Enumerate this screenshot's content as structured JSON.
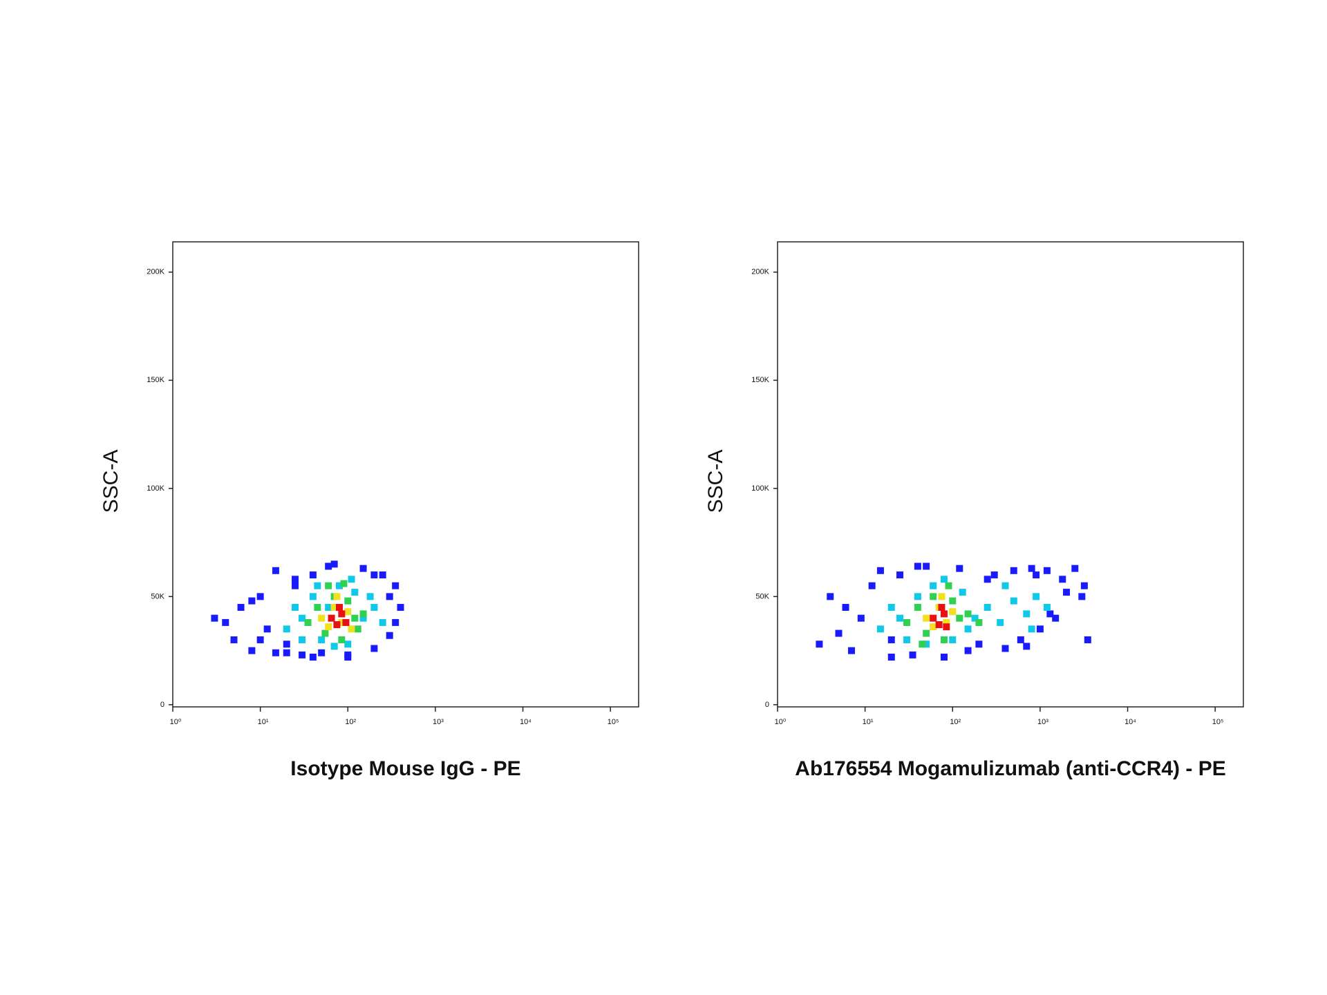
{
  "chart_data": [
    {
      "type": "density-scatter",
      "x_label": "Isotype Mouse IgG - PE",
      "y_label": "SSC-A",
      "xscale": "log",
      "xlim": [
        1,
        210000
      ],
      "xticks": [
        {
          "value": 1,
          "label": "10⁰"
        },
        {
          "value": 10,
          "label": "10¹"
        },
        {
          "value": 100,
          "label": "10²"
        },
        {
          "value": 1000,
          "label": "10³"
        },
        {
          "value": 10000,
          "label": "10⁴"
        },
        {
          "value": 100000,
          "label": "10⁵"
        }
      ],
      "ylim": [
        -1000,
        214000
      ],
      "yticks": [
        0,
        {
          "value": 50000,
          "label": "50K"
        },
        {
          "value": 100000,
          "label": "100K"
        },
        {
          "value": 150000,
          "label": "150K"
        },
        {
          "value": 200000,
          "label": "200K"
        }
      ],
      "series": [
        {
          "color": "#1a1aff",
          "x": [
            3,
            4,
            5,
            6,
            8,
            10,
            12,
            15,
            20,
            25,
            30,
            40,
            50,
            70,
            100,
            150,
            200,
            250,
            300,
            350,
            400,
            15,
            25,
            40,
            60,
            100,
            200,
            300,
            10,
            20,
            8,
            350
          ],
          "values": [
            40000,
            38000,
            30000,
            45000,
            25000,
            50000,
            35000,
            62000,
            28000,
            58000,
            23000,
            60000,
            24000,
            65000,
            22000,
            63000,
            26000,
            60000,
            32000,
            55000,
            45000,
            24000,
            55000,
            22000,
            64000,
            23000,
            60000,
            50000,
            30000,
            24000,
            48000,
            38000
          ]
        },
        {
          "color": "#10c8e8",
          "x": [
            20,
            25,
            30,
            40,
            50,
            60,
            80,
            100,
            120,
            150,
            200,
            250,
            30,
            45,
            70,
            110,
            180
          ],
          "values": [
            35000,
            45000,
            40000,
            50000,
            30000,
            45000,
            55000,
            28000,
            52000,
            40000,
            45000,
            38000,
            30000,
            55000,
            27000,
            58000,
            50000
          ]
        },
        {
          "color": "#30d050",
          "x": [
            35,
            45,
            55,
            70,
            85,
            100,
            120,
            150,
            60,
            90,
            130
          ],
          "values": [
            38000,
            45000,
            33000,
            50000,
            30000,
            48000,
            40000,
            42000,
            55000,
            56000,
            35000
          ]
        },
        {
          "color": "#f0e020",
          "x": [
            50,
            60,
            70,
            85,
            100,
            75,
            110
          ],
          "values": [
            40000,
            36000,
            45000,
            38000,
            43000,
            50000,
            35000
          ]
        },
        {
          "color": "#e81010",
          "x": [
            65,
            75,
            85,
            95,
            80
          ],
          "values": [
            40000,
            37000,
            42000,
            38000,
            45000
          ]
        }
      ]
    },
    {
      "type": "density-scatter",
      "x_label": "Ab176554 Mogamulizumab (anti-CCR4) - PE",
      "y_label": "SSC-A",
      "xscale": "log",
      "xlim": [
        1,
        210000
      ],
      "xticks": [
        {
          "value": 1,
          "label": "10⁰"
        },
        {
          "value": 10,
          "label": "10¹"
        },
        {
          "value": 100,
          "label": "10²"
        },
        {
          "value": 1000,
          "label": "10³"
        },
        {
          "value": 10000,
          "label": "10⁴"
        },
        {
          "value": 100000,
          "label": "10⁵"
        }
      ],
      "ylim": [
        -1000,
        214000
      ],
      "yticks": [
        0,
        {
          "value": 50000,
          "label": "50K"
        },
        {
          "value": 100000,
          "label": "100K"
        },
        {
          "value": 150000,
          "label": "150K"
        },
        {
          "value": 200000,
          "label": "200K"
        }
      ],
      "series": [
        {
          "color": "#1a1aff",
          "x": [
            3,
            4,
            5,
            6,
            7,
            9,
            12,
            15,
            20,
            25,
            35,
            50,
            80,
            120,
            200,
            300,
            400,
            500,
            600,
            800,
            1000,
            1200,
            1500,
            1800,
            2000,
            2500,
            3000,
            3200,
            3500,
            150,
            250,
            700,
            900,
            1300,
            20,
            40
          ],
          "values": [
            28000,
            50000,
            33000,
            45000,
            25000,
            40000,
            55000,
            62000,
            22000,
            60000,
            23000,
            64000,
            22000,
            63000,
            28000,
            60000,
            26000,
            62000,
            30000,
            63000,
            35000,
            62000,
            40000,
            58000,
            52000,
            63000,
            50000,
            55000,
            30000,
            25000,
            58000,
            27000,
            60000,
            42000,
            30000,
            64000
          ]
        },
        {
          "color": "#10c8e8",
          "x": [
            15,
            20,
            30,
            40,
            50,
            60,
            80,
            100,
            130,
            180,
            250,
            350,
            500,
            700,
            900,
            1200,
            25,
            150,
            400,
            800
          ],
          "values": [
            35000,
            45000,
            30000,
            50000,
            28000,
            55000,
            58000,
            30000,
            52000,
            40000,
            45000,
            38000,
            48000,
            42000,
            50000,
            45000,
            40000,
            35000,
            55000,
            35000
          ]
        },
        {
          "color": "#30d050",
          "x": [
            30,
            40,
            50,
            60,
            80,
            100,
            120,
            150,
            200,
            45,
            90
          ],
          "values": [
            38000,
            45000,
            33000,
            50000,
            30000,
            48000,
            40000,
            42000,
            38000,
            28000,
            55000
          ]
        },
        {
          "color": "#f0e020",
          "x": [
            50,
            60,
            70,
            85,
            100,
            75
          ],
          "values": [
            40000,
            36000,
            45000,
            38000,
            43000,
            50000
          ]
        },
        {
          "color": "#e81010",
          "x": [
            60,
            70,
            80,
            75,
            85
          ],
          "values": [
            40000,
            37000,
            42000,
            45000,
            36000
          ]
        }
      ]
    }
  ]
}
